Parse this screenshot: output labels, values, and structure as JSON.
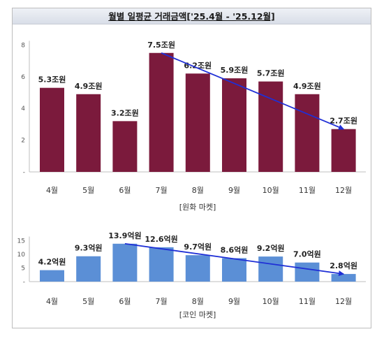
{
  "title": "월별 일평균 거래금액['25.4월 - '25.12월]",
  "colors": {
    "top_bar": "#7b1a3c",
    "bottom_bar": "#5b8fd6",
    "trend": "#1f2fd6",
    "axis": "#bfbfbf"
  },
  "chart_data": [
    {
      "type": "bar",
      "categories": [
        "4월",
        "5월",
        "6월",
        "7월",
        "8월",
        "9월",
        "10월",
        "11월",
        "12월"
      ],
      "values": [
        5.3,
        4.9,
        3.2,
        7.5,
        6.2,
        5.9,
        5.7,
        4.9,
        2.7
      ],
      "data_labels": [
        "5.3조원",
        "4.9조원",
        "3.2조원",
        "7.5조원",
        "6.2조원",
        "5.9조원",
        "5.7조원",
        "4.9조원",
        "2.7조원"
      ],
      "yticks": [
        "-",
        "2",
        "4",
        "6",
        "8"
      ],
      "ylim": [
        0,
        8
      ],
      "xlabel": "[원화 마켓]",
      "ylabel": "",
      "trend_arrow": {
        "from": "7월",
        "to": "12월"
      },
      "grid": false
    },
    {
      "type": "bar",
      "categories": [
        "4월",
        "5월",
        "6월",
        "7월",
        "8월",
        "9월",
        "10월",
        "11월",
        "12월"
      ],
      "values": [
        4.2,
        9.3,
        13.9,
        12.6,
        9.7,
        8.6,
        9.2,
        7.0,
        2.8
      ],
      "data_labels": [
        "4.2억원",
        "9.3억원",
        "13.9억원",
        "12.6억원",
        "9.7억원",
        "8.6억원",
        "9.2억원",
        "7.0억원",
        "2.8억원"
      ],
      "yticks": [
        "-",
        "5",
        "10",
        "15"
      ],
      "ylim": [
        0,
        15
      ],
      "xlabel": "[코인 마켓]",
      "ylabel": "",
      "trend_arrow": {
        "from": "6월",
        "to": "12월"
      },
      "grid": false
    }
  ]
}
